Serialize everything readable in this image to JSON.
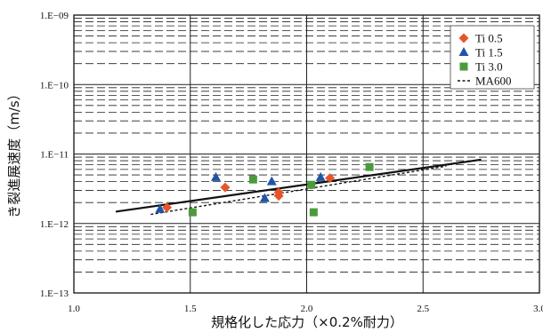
{
  "chart_data": {
    "type": "scatter",
    "title": "",
    "xlabel": "規格化した応力（×0.2%耐力）",
    "ylabel": "き裂進展速度（m/s）",
    "xlim": [
      1.0,
      3.0
    ],
    "ylim": [
      1e-13,
      1e-09
    ],
    "y_scale": "log",
    "x_ticks": [
      "1.0",
      "1.5",
      "2.0",
      "2.5",
      "3.0"
    ],
    "y_ticks": [
      "1.E−13",
      "1.E−12",
      "1.E−11",
      "1.E−10",
      "1.E−09"
    ],
    "grid": true,
    "legend_position": "top-right",
    "series": [
      {
        "name": "Ti 0.5",
        "marker": "diamond",
        "color": "#e8542a",
        "points": [
          [
            1.4,
            1.7e-12
          ],
          [
            1.65,
            3.3e-12
          ],
          [
            1.88,
            2.8e-12
          ],
          [
            1.88,
            2.5e-12
          ],
          [
            2.1,
            4.5e-12
          ]
        ]
      },
      {
        "name": "Ti 1.5",
        "marker": "triangle",
        "color": "#1f55a8",
        "points": [
          [
            1.37,
            1.6e-12
          ],
          [
            1.61,
            4.6e-12
          ],
          [
            1.82,
            2.3e-12
          ],
          [
            1.85,
            4e-12
          ],
          [
            2.06,
            4.6e-12
          ]
        ]
      },
      {
        "name": "Ti 3.0",
        "marker": "square",
        "color": "#4c9a3c",
        "points": [
          [
            1.51,
            1.45e-12
          ],
          [
            1.77,
            4.3e-12
          ],
          [
            2.02,
            3.6e-12
          ],
          [
            2.03,
            1.45e-12
          ],
          [
            2.27,
            6.5e-12
          ]
        ]
      }
    ],
    "lines": [
      {
        "name": "",
        "style": "solid",
        "color": "#111111",
        "points": [
          [
            1.18,
            1.48e-12
          ],
          [
            2.75,
            8.3e-12
          ]
        ]
      },
      {
        "name": "MA600",
        "style": "dashed",
        "color": "#111111",
        "points": [
          [
            1.33,
            1.35e-12
          ],
          [
            2.6,
            6.7e-12
          ]
        ]
      }
    ]
  }
}
